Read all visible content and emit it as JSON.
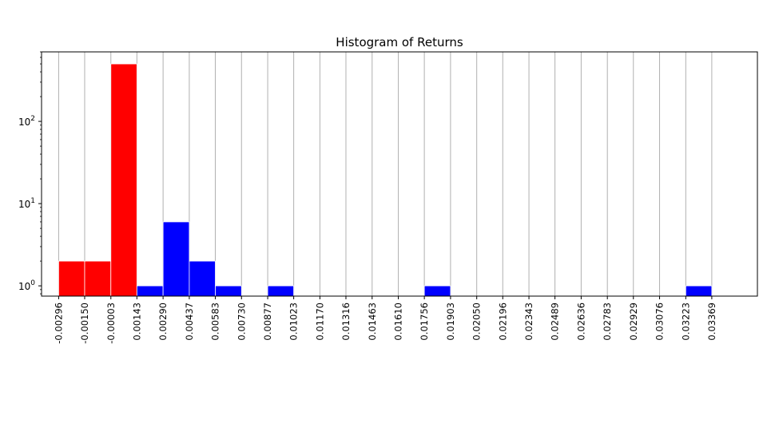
{
  "chart_data": {
    "type": "bar",
    "title": "Histogram of Returns",
    "xlabel": "",
    "ylabel": "",
    "y_scale": "log",
    "ylim": [
      0.75,
      700
    ],
    "xlim": [
      -0.00392,
      0.03625
    ],
    "grid": "vertical",
    "legend": "none",
    "x_ticks": [
      "-0.00296",
      "-0.00150",
      "-0.00003",
      "0.00143",
      "0.00290",
      "0.00437",
      "0.00583",
      "0.00730",
      "0.00877",
      "0.01023",
      "0.01170",
      "0.01316",
      "0.01463",
      "0.01610",
      "0.01756",
      "0.01903",
      "0.02050",
      "0.02196",
      "0.02343",
      "0.02489",
      "0.02636",
      "0.02783",
      "0.02929",
      "0.03076",
      "0.03223",
      "0.03369"
    ],
    "y_ticks": [
      {
        "value": 1,
        "base": "10",
        "exp": "0"
      },
      {
        "value": 10,
        "base": "10",
        "exp": "1"
      },
      {
        "value": 100,
        "base": "10",
        "exp": "2"
      }
    ],
    "bins": [
      {
        "start": -0.00296,
        "end": -0.0015,
        "count": 2,
        "color": "#ff0000"
      },
      {
        "start": -0.0015,
        "end": -3e-05,
        "count": 2,
        "color": "#ff0000"
      },
      {
        "start": -3e-05,
        "end": 0.00143,
        "count": 500,
        "color": "#ff0000"
      },
      {
        "start": 0.00143,
        "end": 0.0029,
        "count": 1,
        "color": "#0000ff"
      },
      {
        "start": 0.0029,
        "end": 0.00437,
        "count": 6,
        "color": "#0000ff"
      },
      {
        "start": 0.00437,
        "end": 0.00583,
        "count": 2,
        "color": "#0000ff"
      },
      {
        "start": 0.00583,
        "end": 0.0073,
        "count": 1,
        "color": "#0000ff"
      },
      {
        "start": 0.00877,
        "end": 0.01023,
        "count": 1,
        "color": "#0000ff"
      },
      {
        "start": 0.01756,
        "end": 0.01903,
        "count": 1,
        "color": "#0000ff"
      },
      {
        "start": 0.03223,
        "end": 0.03369,
        "count": 1,
        "color": "#0000ff"
      }
    ],
    "colors": {
      "negative": "#ff0000",
      "positive": "#0000ff",
      "grid": "#b0b0b0"
    }
  }
}
